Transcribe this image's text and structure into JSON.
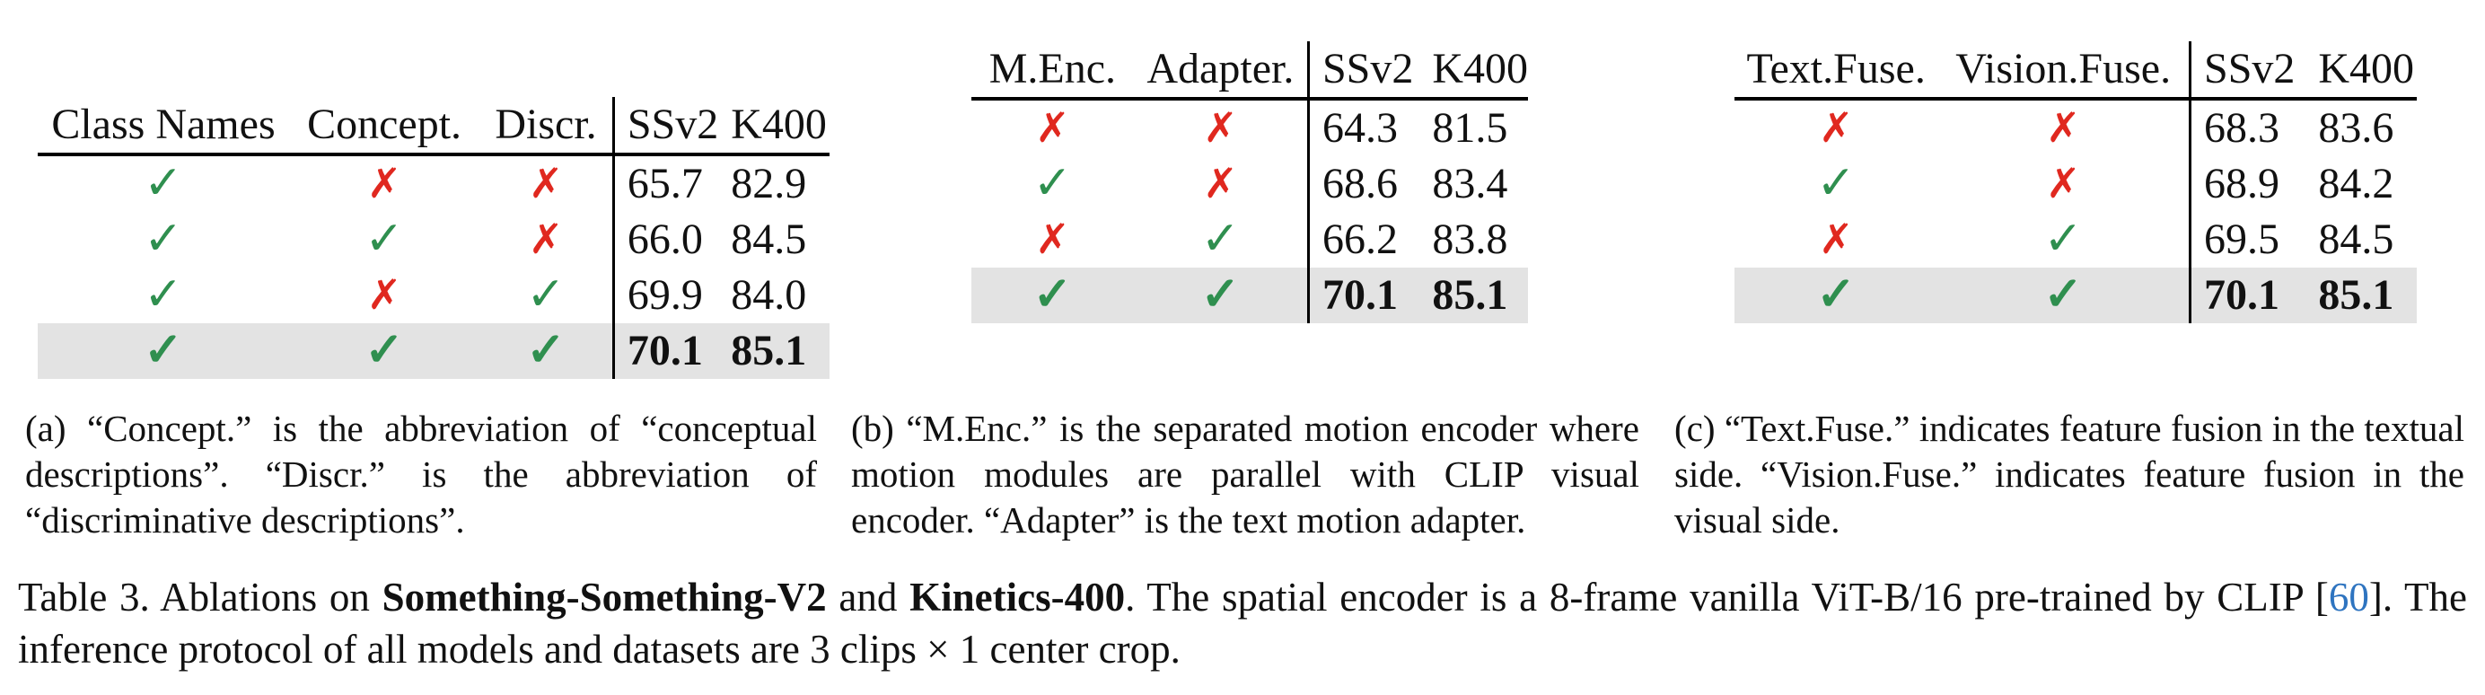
{
  "tables": {
    "a": {
      "headers": [
        "Class Names",
        "Concept.",
        "Discr.",
        "SSv2",
        "K400"
      ],
      "rows": [
        {
          "marks": [
            "check",
            "cross",
            "cross"
          ],
          "ssv2": "65.7",
          "k400": "82.9",
          "highlight": false
        },
        {
          "marks": [
            "check",
            "check",
            "cross"
          ],
          "ssv2": "66.0",
          "k400": "84.5",
          "highlight": false
        },
        {
          "marks": [
            "check",
            "cross",
            "check"
          ],
          "ssv2": "69.9",
          "k400": "84.0",
          "highlight": false
        },
        {
          "marks": [
            "check",
            "check",
            "check"
          ],
          "ssv2": "70.1",
          "k400": "85.1",
          "highlight": true
        }
      ]
    },
    "b": {
      "headers": [
        "M.Enc.",
        "Adapter.",
        "SSv2",
        "K400"
      ],
      "rows": [
        {
          "marks": [
            "cross",
            "cross"
          ],
          "ssv2": "64.3",
          "k400": "81.5",
          "highlight": false
        },
        {
          "marks": [
            "check",
            "cross"
          ],
          "ssv2": "68.6",
          "k400": "83.4",
          "highlight": false
        },
        {
          "marks": [
            "cross",
            "check"
          ],
          "ssv2": "66.2",
          "k400": "83.8",
          "highlight": false
        },
        {
          "marks": [
            "check",
            "check"
          ],
          "ssv2": "70.1",
          "k400": "85.1",
          "highlight": true
        }
      ]
    },
    "c": {
      "headers": [
        "Text.Fuse.",
        "Vision.Fuse.",
        "SSv2",
        "K400"
      ],
      "rows": [
        {
          "marks": [
            "cross",
            "cross"
          ],
          "ssv2": "68.3",
          "k400": "83.6",
          "highlight": false
        },
        {
          "marks": [
            "check",
            "cross"
          ],
          "ssv2": "68.9",
          "k400": "84.2",
          "highlight": false
        },
        {
          "marks": [
            "cross",
            "check"
          ],
          "ssv2": "69.5",
          "k400": "84.5",
          "highlight": false
        },
        {
          "marks": [
            "check",
            "check"
          ],
          "ssv2": "70.1",
          "k400": "85.1",
          "highlight": true
        }
      ]
    }
  },
  "glyphs": {
    "check": "✓",
    "cross": "✗"
  },
  "colors": {
    "check": "#2f8f4f",
    "cross": "#e0281f",
    "highlight_row": "#e3e3e3",
    "reference_link": "#2e74c0"
  },
  "subcaptions": {
    "a": "(a) “Concept.” is the abbreviation of “conceptual descriptions”. “Discr.” is the abbreviation of “discriminative descriptions”.",
    "b": "(b) “M.Enc.” is the separated motion encoder where motion modules are parallel with CLIP visual encoder. “Adapter” is the text motion adapter.",
    "c": "(c) “Text.Fuse.” indicates feature fusion in the textual side. “Vision.Fuse.” indicates feature fusion in the visual side."
  },
  "caption": {
    "label": "Table 3.",
    "part1": "Ablations on ",
    "bold1": "Something-Something-V2",
    "part2": " and ",
    "bold2": "Kinetics-400",
    "part3": ". The spatial encoder is a 8-frame vanilla ViT-B/16 pre-trained by CLIP [",
    "ref": "60",
    "part4": "]. The inference protocol of all models and datasets are 3 clips × 1 center crop."
  }
}
